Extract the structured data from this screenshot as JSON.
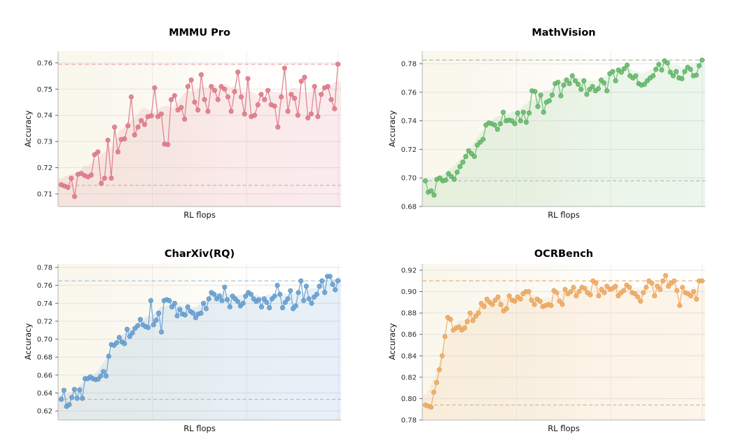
{
  "figure": {
    "background": "#ffffff",
    "grid_color": "#dfdfe6",
    "spine_color": "#b5b5b5"
  },
  "chart_data": [
    {
      "type": "line",
      "title": "MMMU Pro",
      "xlabel": "RL flops",
      "ylabel": "Accuracy",
      "ylim": [
        0.7052,
        0.7645
      ],
      "yticks": [
        0.71,
        0.72,
        0.73,
        0.74,
        0.75,
        0.76
      ],
      "hline_top": 0.7595,
      "hline_bottom": 0.7133,
      "color": "#e0808d",
      "edge_color": "#d76f7e",
      "fill_color": "rgba(224,128,140,0.16)",
      "dash_top_color": "#eba4ae",
      "dash_bottom_color": "#b7aeb1",
      "values": [
        0.7135,
        0.713,
        0.7125,
        0.716,
        0.709,
        0.7175,
        0.7178,
        0.717,
        0.7165,
        0.7172,
        0.725,
        0.726,
        0.714,
        0.716,
        0.7305,
        0.716,
        0.7355,
        0.726,
        0.7308,
        0.731,
        0.736,
        0.747,
        0.7325,
        0.7355,
        0.738,
        0.7365,
        0.7395,
        0.7398,
        0.7505,
        0.7395,
        0.7405,
        0.729,
        0.7288,
        0.746,
        0.7475,
        0.742,
        0.743,
        0.7385,
        0.751,
        0.7535,
        0.745,
        0.742,
        0.7555,
        0.746,
        0.7415,
        0.751,
        0.7495,
        0.746,
        0.751,
        0.75,
        0.747,
        0.7415,
        0.749,
        0.7565,
        0.747,
        0.7405,
        0.754,
        0.7395,
        0.74,
        0.744,
        0.748,
        0.746,
        0.7495,
        0.744,
        0.7435,
        0.7355,
        0.747,
        0.758,
        0.7415,
        0.748,
        0.7465,
        0.74,
        0.753,
        0.7545,
        0.739,
        0.7405,
        0.751,
        0.7395,
        0.748,
        0.7505,
        0.751,
        0.746,
        0.7425,
        0.7595
      ]
    },
    {
      "type": "line",
      "title": "MathVision",
      "xlabel": "RL flops",
      "ylabel": "Accuracy",
      "ylim": [
        0.68,
        0.7888
      ],
      "yticks": [
        0.68,
        0.7,
        0.72,
        0.74,
        0.76,
        0.78
      ],
      "hline_top": 0.7825,
      "hline_bottom": 0.698,
      "color": "#6fbe73",
      "edge_color": "#57ab5e",
      "fill_color": "rgba(124,197,127,0.15)",
      "dash_top_color": "#a5bfa7",
      "dash_bottom_color": "#a9b2aa",
      "values": [
        0.698,
        0.69,
        0.691,
        0.688,
        0.699,
        0.7,
        0.698,
        0.6985,
        0.703,
        0.701,
        0.699,
        0.704,
        0.708,
        0.711,
        0.715,
        0.719,
        0.717,
        0.715,
        0.723,
        0.725,
        0.727,
        0.737,
        0.7385,
        0.738,
        0.737,
        0.734,
        0.738,
        0.746,
        0.74,
        0.7405,
        0.74,
        0.738,
        0.7455,
        0.74,
        0.746,
        0.739,
        0.7455,
        0.761,
        0.7605,
        0.75,
        0.758,
        0.746,
        0.753,
        0.754,
        0.758,
        0.766,
        0.767,
        0.7575,
        0.765,
        0.7685,
        0.766,
        0.7715,
        0.768,
        0.7655,
        0.762,
        0.768,
        0.7585,
        0.762,
        0.764,
        0.761,
        0.7625,
        0.7685,
        0.7665,
        0.761,
        0.773,
        0.7745,
        0.768,
        0.7755,
        0.774,
        0.7765,
        0.779,
        0.7715,
        0.77,
        0.7715,
        0.766,
        0.765,
        0.7655,
        0.768,
        0.77,
        0.7715,
        0.776,
        0.7795,
        0.7755,
        0.782,
        0.7805,
        0.774,
        0.7715,
        0.7745,
        0.77,
        0.7695,
        0.7745,
        0.7775,
        0.776,
        0.7715,
        0.772,
        0.7785,
        0.7825
      ]
    },
    {
      "type": "line",
      "title": "CharXiv(RQ)",
      "xlabel": "RL flops",
      "ylabel": "Accuracy",
      "ylim": [
        0.6099,
        0.7839
      ],
      "yticks": [
        0.62,
        0.64,
        0.66,
        0.68,
        0.7,
        0.72,
        0.74,
        0.76,
        0.78
      ],
      "hline_top": 0.765,
      "hline_bottom": 0.633,
      "color": "#6ea4d4",
      "edge_color": "#5793c6",
      "fill_color": "rgba(121,171,214,0.18)",
      "dash_top_color": "#a6c5e1",
      "dash_bottom_color": "#a7b5c2",
      "values": [
        0.633,
        0.643,
        0.625,
        0.627,
        0.635,
        0.644,
        0.634,
        0.6435,
        0.634,
        0.656,
        0.656,
        0.658,
        0.656,
        0.655,
        0.6555,
        0.659,
        0.664,
        0.659,
        0.681,
        0.694,
        0.693,
        0.696,
        0.702,
        0.697,
        0.695,
        0.711,
        0.703,
        0.707,
        0.712,
        0.715,
        0.722,
        0.716,
        0.714,
        0.713,
        0.743,
        0.716,
        0.721,
        0.729,
        0.708,
        0.743,
        0.744,
        0.743,
        0.736,
        0.74,
        0.726,
        0.733,
        0.728,
        0.727,
        0.736,
        0.731,
        0.729,
        0.724,
        0.728,
        0.729,
        0.74,
        0.734,
        0.745,
        0.752,
        0.75,
        0.745,
        0.748,
        0.743,
        0.758,
        0.744,
        0.736,
        0.748,
        0.745,
        0.742,
        0.737,
        0.74,
        0.748,
        0.752,
        0.75,
        0.745,
        0.742,
        0.744,
        0.736,
        0.745,
        0.741,
        0.735,
        0.745,
        0.748,
        0.76,
        0.75,
        0.735,
        0.741,
        0.745,
        0.754,
        0.734,
        0.737,
        0.752,
        0.765,
        0.743,
        0.759,
        0.745,
        0.74,
        0.747,
        0.75,
        0.759,
        0.765,
        0.752,
        0.77,
        0.77,
        0.761,
        0.755,
        0.765
      ]
    },
    {
      "type": "line",
      "title": "OCRBench",
      "xlabel": "RL flops",
      "ylabel": "Accuracy",
      "ylim": [
        0.78,
        0.9259
      ],
      "yticks": [
        0.78,
        0.8,
        0.82,
        0.84,
        0.86,
        0.88,
        0.9,
        0.92
      ],
      "hline_top": 0.91,
      "hline_bottom": 0.794,
      "color": "#efae6d",
      "edge_color": "#e79e51",
      "fill_color": "rgba(242,184,125,0.16)",
      "dash_top_color": "#f1b478",
      "dash_bottom_color": "#b9b0a4",
      "values": [
        0.794,
        0.793,
        0.792,
        0.806,
        0.815,
        0.827,
        0.84,
        0.858,
        0.876,
        0.874,
        0.864,
        0.866,
        0.867,
        0.864,
        0.866,
        0.872,
        0.88,
        0.873,
        0.877,
        0.88,
        0.889,
        0.886,
        0.893,
        0.89,
        0.888,
        0.892,
        0.895,
        0.888,
        0.882,
        0.884,
        0.896,
        0.892,
        0.891,
        0.895,
        0.893,
        0.898,
        0.9,
        0.9,
        0.892,
        0.888,
        0.893,
        0.891,
        0.886,
        0.887,
        0.888,
        0.887,
        0.901,
        0.899,
        0.891,
        0.888,
        0.902,
        0.898,
        0.9,
        0.904,
        0.896,
        0.9,
        0.904,
        0.903,
        0.899,
        0.897,
        0.91,
        0.908,
        0.896,
        0.902,
        0.899,
        0.905,
        0.902,
        0.903,
        0.905,
        0.896,
        0.899,
        0.901,
        0.906,
        0.904,
        0.899,
        0.898,
        0.895,
        0.891,
        0.899,
        0.904,
        0.91,
        0.908,
        0.896,
        0.905,
        0.902,
        0.91,
        0.915,
        0.905,
        0.908,
        0.91,
        0.901,
        0.887,
        0.904,
        0.899,
        0.898,
        0.896,
        0.9,
        0.893,
        0.91,
        0.91
      ]
    }
  ]
}
